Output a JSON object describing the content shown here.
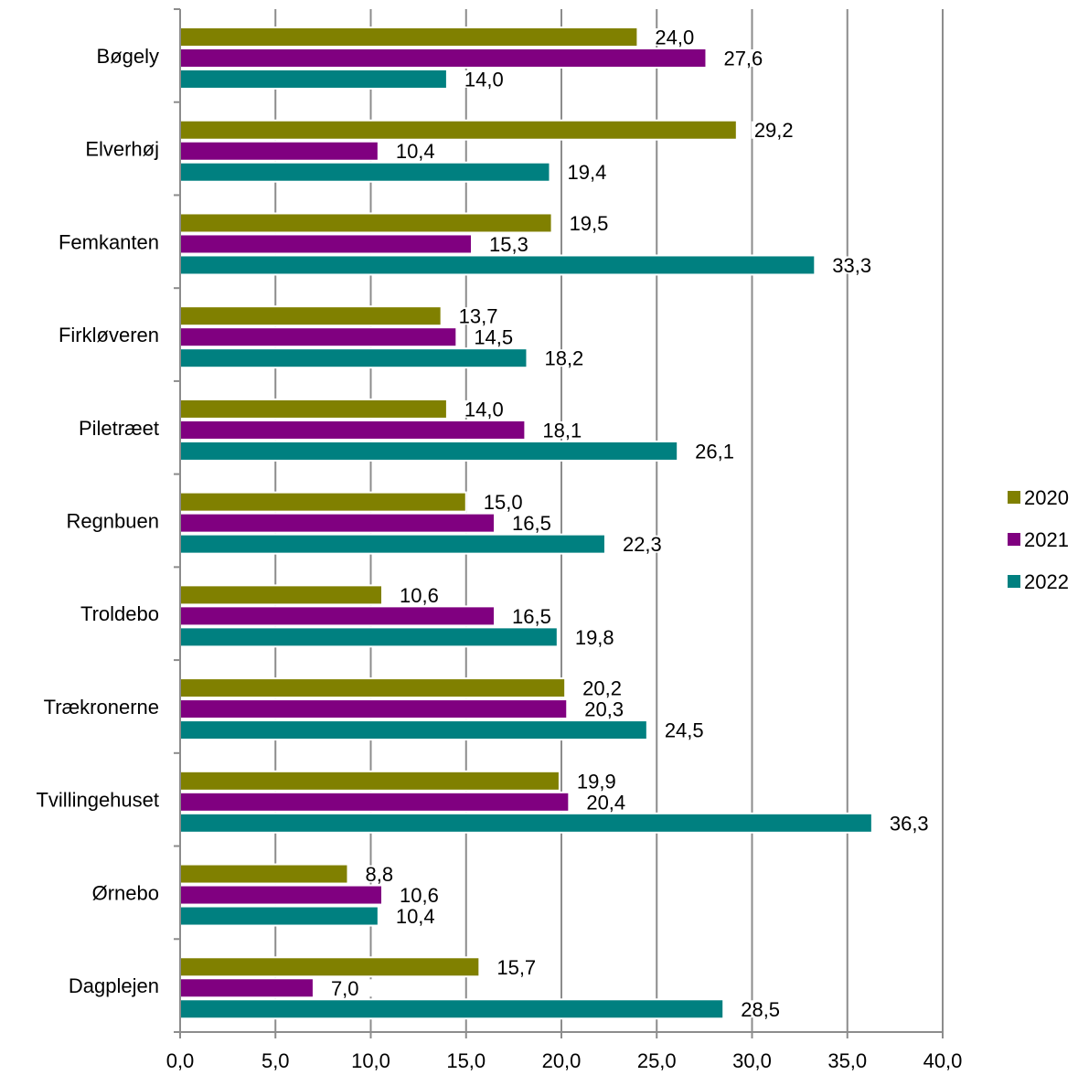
{
  "chart_data": {
    "type": "bar",
    "orientation": "horizontal",
    "categories": [
      "Bøgely",
      "Elverhøj",
      "Femkanten",
      "Firkløveren",
      "Piletræet",
      "Regnbuen",
      "Troldebo",
      "Trækronerne",
      "Tvillingehuset",
      "Ørnebo",
      "Dagplejen"
    ],
    "series": [
      {
        "name": "2020",
        "color": "#808000",
        "values": [
          24.0,
          29.2,
          19.5,
          13.7,
          14.0,
          15.0,
          10.6,
          20.2,
          19.9,
          8.8,
          15.7
        ],
        "labels": [
          "24,0",
          "29,2",
          "19,5",
          "13,7",
          "14,0",
          "15,0",
          "10,6",
          "20,2",
          "19,9",
          "8,8",
          "15,7"
        ]
      },
      {
        "name": "2021",
        "color": "#800080",
        "values": [
          27.6,
          10.4,
          15.3,
          14.5,
          18.1,
          16.5,
          16.5,
          20.3,
          20.4,
          10.6,
          7.0
        ],
        "labels": [
          "27,6",
          "10,4",
          "15,3",
          "14,5",
          "18,1",
          "16,5",
          "16,5",
          "20,3",
          "20,4",
          "10,6",
          "7,0"
        ]
      },
      {
        "name": "2022",
        "color": "#008080",
        "values": [
          14.0,
          19.4,
          33.3,
          18.2,
          26.1,
          22.3,
          19.8,
          24.5,
          36.3,
          10.4,
          28.5
        ],
        "labels": [
          "14,0",
          "19,4",
          "33,3",
          "18,2",
          "26,1",
          "22,3",
          "19,8",
          "24,5",
          "36,3",
          "10,4",
          "28,5"
        ]
      }
    ],
    "xlim": [
      0,
      40
    ],
    "xticks": [
      0,
      5,
      10,
      15,
      20,
      25,
      30,
      35,
      40
    ],
    "xtick_labels": [
      "0,0",
      "5,0",
      "10,0",
      "15,0",
      "20,0",
      "25,0",
      "30,0",
      "35,0",
      "40,0"
    ],
    "grid": "vertical",
    "legend_position": "right"
  }
}
